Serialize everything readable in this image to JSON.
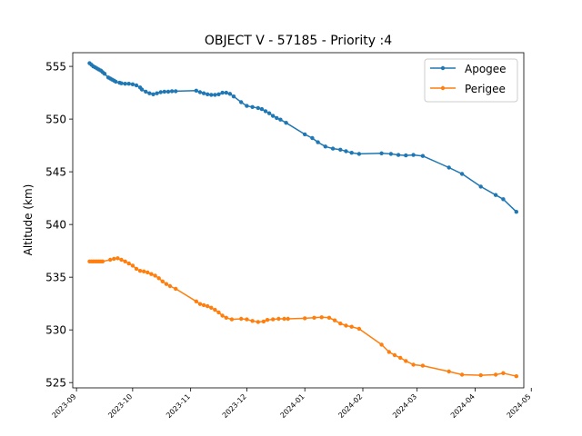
{
  "chart_data": {
    "type": "line",
    "title": "OBJECT V - 57185 - Priority :4",
    "xlabel": "",
    "ylabel": "Altitude (km)",
    "xlim": [
      "2023-08-30",
      "2024-04-27"
    ],
    "ylim": [
      524.5,
      556.3
    ],
    "grid": false,
    "legend": {
      "position": "top-right"
    },
    "x_ticks": [
      "2023-09",
      "2023-10",
      "2023-11",
      "2023-12",
      "2024-01",
      "2024-02",
      "2024-03",
      "2024-04",
      "2024-05"
    ],
    "y_ticks": [
      525,
      530,
      535,
      540,
      545,
      550,
      555
    ],
    "series": [
      {
        "name": "Apogee",
        "color": "#1f77b4",
        "points": [
          [
            "2023-09-08",
            555.3
          ],
          [
            "2023-09-09",
            555.15
          ],
          [
            "2023-09-10",
            555.0
          ],
          [
            "2023-09-11",
            554.9
          ],
          [
            "2023-09-12",
            554.8
          ],
          [
            "2023-09-13",
            554.7
          ],
          [
            "2023-09-14",
            554.6
          ],
          [
            "2023-09-15",
            554.45
          ],
          [
            "2023-09-16",
            554.3
          ],
          [
            "2023-09-18",
            553.95
          ],
          [
            "2023-09-19",
            553.85
          ],
          [
            "2023-09-20",
            553.75
          ],
          [
            "2023-09-21",
            553.65
          ],
          [
            "2023-09-22",
            553.55
          ],
          [
            "2023-09-24",
            553.45
          ],
          [
            "2023-09-25",
            553.4
          ],
          [
            "2023-09-27",
            553.35
          ],
          [
            "2023-09-29",
            553.35
          ],
          [
            "2023-10-01",
            553.3
          ],
          [
            "2023-10-03",
            553.2
          ],
          [
            "2023-10-05",
            553.0
          ],
          [
            "2023-10-06",
            552.8
          ],
          [
            "2023-10-08",
            552.6
          ],
          [
            "2023-10-10",
            552.45
          ],
          [
            "2023-10-12",
            552.35
          ],
          [
            "2023-10-14",
            552.45
          ],
          [
            "2023-10-16",
            552.55
          ],
          [
            "2023-10-18",
            552.6
          ],
          [
            "2023-10-20",
            552.6
          ],
          [
            "2023-10-22",
            552.65
          ],
          [
            "2023-10-24",
            552.65
          ],
          [
            "2023-11-04",
            552.7
          ],
          [
            "2023-11-06",
            552.55
          ],
          [
            "2023-11-08",
            552.45
          ],
          [
            "2023-11-10",
            552.35
          ],
          [
            "2023-11-12",
            552.3
          ],
          [
            "2023-11-14",
            552.3
          ],
          [
            "2023-11-16",
            552.35
          ],
          [
            "2023-11-18",
            552.5
          ],
          [
            "2023-11-20",
            552.5
          ],
          [
            "2023-11-22",
            552.4
          ],
          [
            "2023-11-24",
            552.15
          ],
          [
            "2023-11-28",
            551.6
          ],
          [
            "2023-12-01",
            551.25
          ],
          [
            "2023-12-04",
            551.15
          ],
          [
            "2023-12-07",
            551.05
          ],
          [
            "2023-12-09",
            550.95
          ],
          [
            "2023-12-11",
            550.75
          ],
          [
            "2023-12-13",
            550.55
          ],
          [
            "2023-12-15",
            550.3
          ],
          [
            "2023-12-17",
            550.1
          ],
          [
            "2023-12-19",
            549.95
          ],
          [
            "2023-12-22",
            549.65
          ],
          [
            "2024-01-01",
            548.55
          ],
          [
            "2024-01-05",
            548.2
          ],
          [
            "2024-01-08",
            547.8
          ],
          [
            "2024-01-12",
            547.4
          ],
          [
            "2024-01-16",
            547.2
          ],
          [
            "2024-01-20",
            547.1
          ],
          [
            "2024-01-23",
            546.95
          ],
          [
            "2024-01-26",
            546.8
          ],
          [
            "2024-01-30",
            546.7
          ],
          [
            "2024-02-11",
            546.75
          ],
          [
            "2024-02-16",
            546.7
          ],
          [
            "2024-02-20",
            546.6
          ],
          [
            "2024-02-24",
            546.55
          ],
          [
            "2024-02-28",
            546.6
          ],
          [
            "2024-03-04",
            546.5
          ],
          [
            "2024-03-18",
            545.4
          ],
          [
            "2024-03-25",
            544.8
          ],
          [
            "2024-04-04",
            543.6
          ],
          [
            "2024-04-12",
            542.8
          ],
          [
            "2024-04-16",
            542.4
          ],
          [
            "2024-04-23",
            541.2
          ]
        ]
      },
      {
        "name": "Perigee",
        "color": "#ff7f0e",
        "points": [
          [
            "2023-09-08",
            536.5
          ],
          [
            "2023-09-09",
            536.5
          ],
          [
            "2023-09-10",
            536.5
          ],
          [
            "2023-09-11",
            536.5
          ],
          [
            "2023-09-12",
            536.5
          ],
          [
            "2023-09-13",
            536.5
          ],
          [
            "2023-09-14",
            536.5
          ],
          [
            "2023-09-15",
            536.5
          ],
          [
            "2023-09-19",
            536.65
          ],
          [
            "2023-09-21",
            536.75
          ],
          [
            "2023-09-23",
            536.8
          ],
          [
            "2023-09-25",
            536.65
          ],
          [
            "2023-09-27",
            536.5
          ],
          [
            "2023-09-29",
            536.3
          ],
          [
            "2023-10-01",
            536.1
          ],
          [
            "2023-10-03",
            535.8
          ],
          [
            "2023-10-05",
            535.6
          ],
          [
            "2023-10-07",
            535.55
          ],
          [
            "2023-10-09",
            535.45
          ],
          [
            "2023-10-11",
            535.3
          ],
          [
            "2023-10-13",
            535.15
          ],
          [
            "2023-10-15",
            534.9
          ],
          [
            "2023-10-17",
            534.6
          ],
          [
            "2023-10-19",
            534.35
          ],
          [
            "2023-10-21",
            534.15
          ],
          [
            "2023-10-24",
            533.9
          ],
          [
            "2023-11-04",
            532.7
          ],
          [
            "2023-11-06",
            532.45
          ],
          [
            "2023-11-08",
            532.35
          ],
          [
            "2023-11-10",
            532.25
          ],
          [
            "2023-11-12",
            532.1
          ],
          [
            "2023-11-14",
            531.9
          ],
          [
            "2023-11-16",
            531.65
          ],
          [
            "2023-11-18",
            531.35
          ],
          [
            "2023-11-20",
            531.15
          ],
          [
            "2023-11-23",
            531.0
          ],
          [
            "2023-11-28",
            531.05
          ],
          [
            "2023-12-01",
            531.0
          ],
          [
            "2023-12-04",
            530.85
          ],
          [
            "2023-12-07",
            530.75
          ],
          [
            "2023-12-10",
            530.8
          ],
          [
            "2023-12-12",
            530.95
          ],
          [
            "2023-12-15",
            531.0
          ],
          [
            "2023-12-18",
            531.05
          ],
          [
            "2023-12-21",
            531.05
          ],
          [
            "2023-12-23",
            531.05
          ],
          [
            "2024-01-01",
            531.1
          ],
          [
            "2024-01-06",
            531.15
          ],
          [
            "2024-01-10",
            531.2
          ],
          [
            "2024-01-14",
            531.15
          ],
          [
            "2024-01-17",
            530.9
          ],
          [
            "2024-01-20",
            530.6
          ],
          [
            "2024-01-23",
            530.4
          ],
          [
            "2024-01-26",
            530.3
          ],
          [
            "2024-01-30",
            530.1
          ],
          [
            "2024-02-11",
            528.6
          ],
          [
            "2024-02-15",
            527.9
          ],
          [
            "2024-02-18",
            527.6
          ],
          [
            "2024-02-21",
            527.35
          ],
          [
            "2024-02-24",
            527.05
          ],
          [
            "2024-02-28",
            526.7
          ],
          [
            "2024-03-04",
            526.6
          ],
          [
            "2024-03-18",
            526.05
          ],
          [
            "2024-03-25",
            525.75
          ],
          [
            "2024-04-04",
            525.7
          ],
          [
            "2024-04-12",
            525.75
          ],
          [
            "2024-04-16",
            525.9
          ],
          [
            "2024-04-23",
            525.6
          ]
        ]
      }
    ]
  }
}
